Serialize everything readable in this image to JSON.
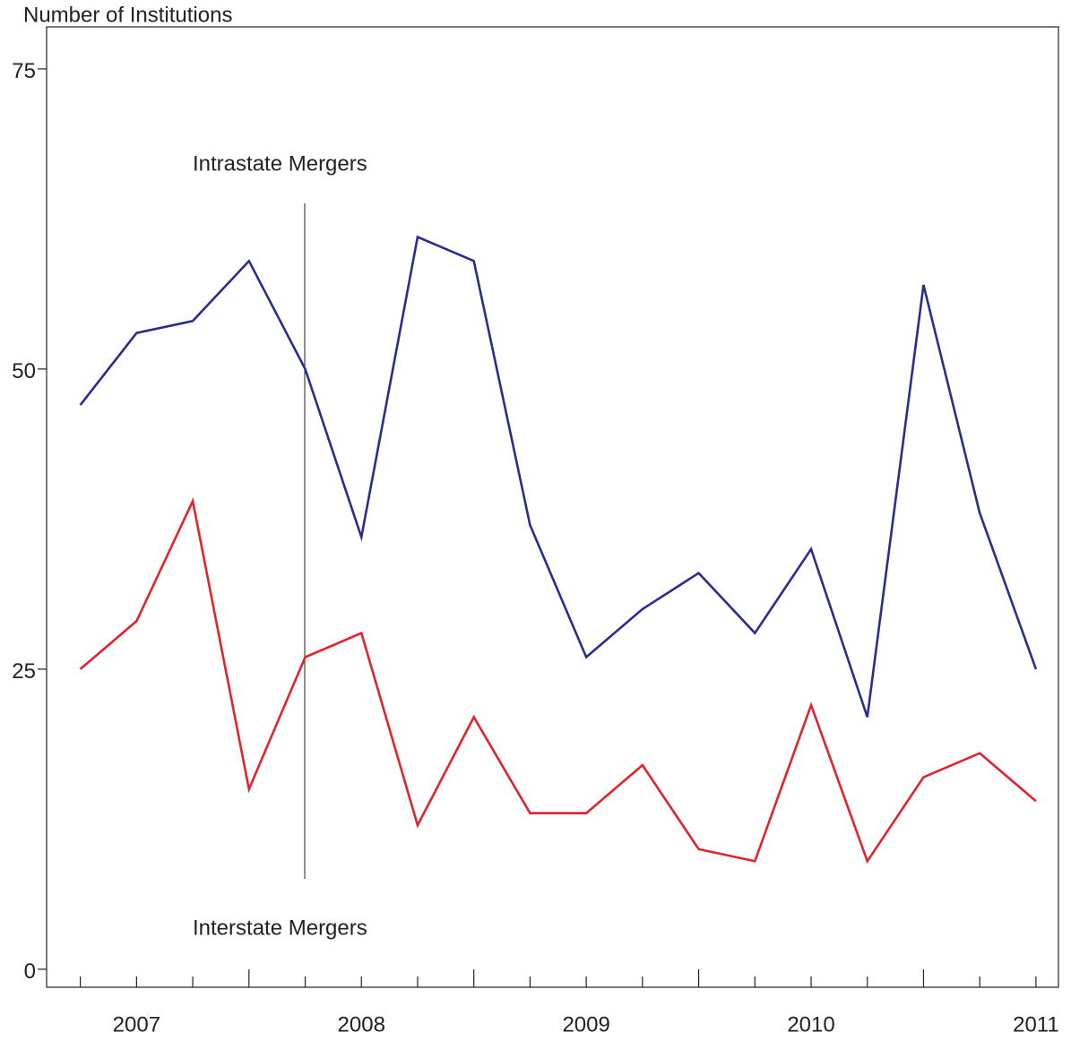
{
  "chart_data": {
    "type": "line",
    "y_label": "Number of Institutions",
    "annotations": [
      "Intrastate Mergers",
      "Interstate Mergers"
    ],
    "x": [
      2006.75,
      2007,
      2007.25,
      2007.5,
      2007.75,
      2008,
      2008.25,
      2008.5,
      2008.75,
      2009,
      2009.25,
      2009.5,
      2009.75,
      2010,
      2010.25,
      2010.5,
      2010.75,
      2011
    ],
    "series": [
      {
        "color": "#2b2d8e",
        "values": [
          47,
          53,
          54,
          59,
          50,
          36,
          61,
          59,
          37,
          26,
          30,
          33,
          28,
          35,
          21,
          57,
          38,
          25
        ]
      },
      {
        "color": "#e3232c",
        "values": [
          25,
          29,
          39,
          15,
          26,
          28,
          12,
          21,
          13,
          13,
          17,
          10,
          9,
          22,
          9,
          16,
          18,
          14
        ]
      }
    ],
    "xlim": [
      2006.6,
      2011.1
    ],
    "xticks": [
      2007,
      2008,
      2009,
      2010,
      2011
    ],
    "ylim": [
      -1.5,
      78.5
    ],
    "yticks": [
      0,
      25,
      50,
      75
    ]
  }
}
